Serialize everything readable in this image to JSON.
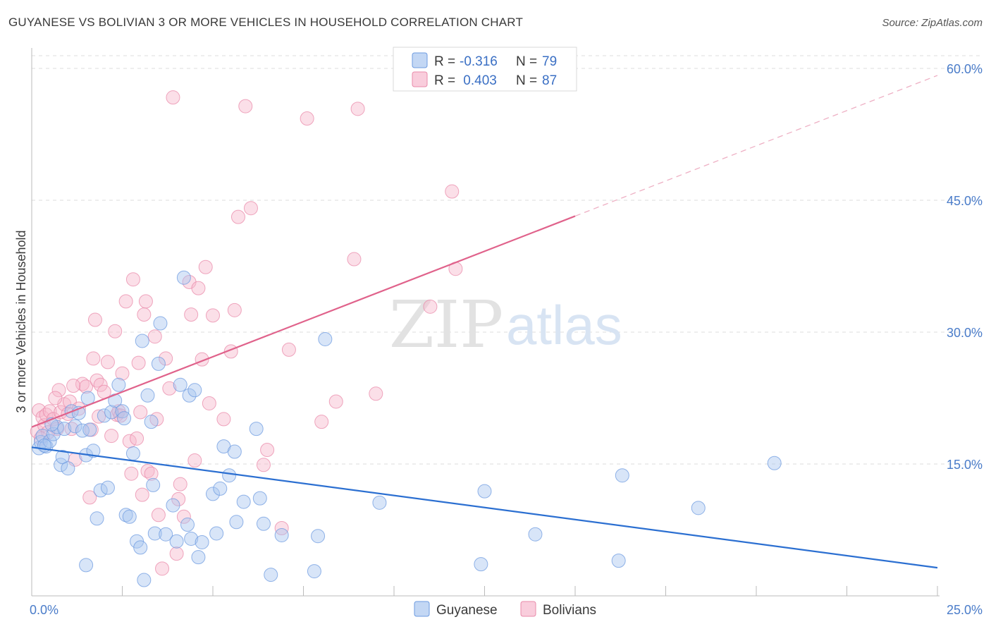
{
  "header": {
    "title": "GUYANESE VS BOLIVIAN 3 OR MORE VEHICLES IN HOUSEHOLD CORRELATION CHART",
    "source": "Source: ZipAtlas.com"
  },
  "watermark": {
    "zip": "ZIP",
    "atlas": "atlas"
  },
  "legend_top": {
    "rows": [
      {
        "r_label": "R =",
        "r_value": "-0.316",
        "n_label": "N =",
        "n_value": "79",
        "color": "#a9c6f0"
      },
      {
        "r_label": "R =",
        "r_value": " 0.403",
        "n_label": "N =",
        "n_value": "87",
        "color": "#f6b8cd"
      }
    ]
  },
  "legend_bottom": {
    "items": [
      "Guyanese",
      "Bolivians"
    ]
  },
  "colors": {
    "guyanese_fill": "#a9c6f0",
    "guyanese_stroke": "#6d9be0",
    "guyanese_line": "#2b6fd1",
    "bolivians_fill": "#f6b8cd",
    "bolivians_stroke": "#e98aaa",
    "bolivians_line": "#e0628b",
    "grid": "#dddddd",
    "tick_text": "#4a7cc9"
  },
  "chart_data": {
    "type": "scatter",
    "title": "GUYANESE VS BOLIVIAN 3 OR MORE VEHICLES IN HOUSEHOLD CORRELATION CHART",
    "xlabel": "",
    "ylabel": "3 or more Vehicles in Household",
    "xlim": [
      0,
      25
    ],
    "ylim": [
      0,
      60
    ],
    "x_ticks": [
      "0.0%",
      "25.0%"
    ],
    "y_ticks": [
      "15.0%",
      "30.0%",
      "45.0%",
      "60.0%"
    ],
    "y_tick_values": [
      15,
      30,
      45,
      60
    ],
    "grid": true,
    "legend_position": "top-center",
    "series": [
      {
        "name": "Guyanese",
        "r": -0.316,
        "n": 79,
        "trend": {
          "x": [
            0,
            25
          ],
          "y": [
            16.9,
            3.2
          ]
        },
        "points": [
          [
            0.2,
            16.8
          ],
          [
            0.25,
            17.5
          ],
          [
            0.3,
            18.2
          ],
          [
            0.4,
            17.0
          ],
          [
            0.5,
            17.6
          ],
          [
            0.6,
            18.4
          ],
          [
            0.7,
            19.2
          ],
          [
            0.8,
            14.9
          ],
          [
            0.85,
            15.8
          ],
          [
            0.9,
            19.0
          ],
          [
            1.0,
            14.5
          ],
          [
            1.1,
            21.0
          ],
          [
            1.2,
            19.3
          ],
          [
            1.3,
            20.8
          ],
          [
            1.4,
            18.8
          ],
          [
            1.5,
            16.0
          ],
          [
            1.55,
            22.5
          ],
          [
            1.6,
            18.9
          ],
          [
            1.7,
            16.5
          ],
          [
            1.8,
            8.8
          ],
          [
            1.9,
            12.0
          ],
          [
            2.0,
            20.5
          ],
          [
            2.1,
            12.3
          ],
          [
            2.2,
            20.9
          ],
          [
            2.3,
            22.2
          ],
          [
            2.4,
            24.0
          ],
          [
            2.5,
            21.0
          ],
          [
            2.55,
            20.2
          ],
          [
            2.6,
            9.2
          ],
          [
            2.7,
            9.0
          ],
          [
            2.8,
            16.2
          ],
          [
            2.9,
            6.2
          ],
          [
            3.0,
            5.5
          ],
          [
            3.05,
            29.0
          ],
          [
            3.1,
            1.8
          ],
          [
            3.2,
            22.8
          ],
          [
            3.3,
            19.8
          ],
          [
            3.35,
            12.6
          ],
          [
            3.4,
            7.1
          ],
          [
            3.5,
            26.4
          ],
          [
            3.55,
            31.0
          ],
          [
            3.7,
            7.0
          ],
          [
            3.9,
            10.3
          ],
          [
            4.0,
            6.2
          ],
          [
            4.1,
            24.0
          ],
          [
            4.2,
            36.2
          ],
          [
            4.3,
            8.1
          ],
          [
            4.35,
            22.8
          ],
          [
            4.4,
            6.5
          ],
          [
            4.5,
            23.4
          ],
          [
            4.6,
            4.4
          ],
          [
            4.7,
            6.1
          ],
          [
            5.0,
            11.6
          ],
          [
            5.1,
            7.1
          ],
          [
            5.2,
            12.2
          ],
          [
            5.3,
            17.0
          ],
          [
            5.45,
            13.7
          ],
          [
            5.6,
            16.4
          ],
          [
            5.65,
            8.4
          ],
          [
            5.85,
            10.7
          ],
          [
            6.2,
            19.0
          ],
          [
            6.3,
            11.1
          ],
          [
            6.4,
            8.2
          ],
          [
            6.6,
            2.4
          ],
          [
            6.9,
            6.9
          ],
          [
            7.8,
            2.8
          ],
          [
            7.9,
            6.8
          ],
          [
            8.1,
            29.2
          ],
          [
            9.6,
            10.6
          ],
          [
            12.4,
            3.6
          ],
          [
            12.5,
            11.9
          ],
          [
            13.9,
            7.0
          ],
          [
            16.2,
            4.0
          ],
          [
            16.3,
            13.7
          ],
          [
            18.4,
            10.0
          ],
          [
            20.5,
            15.1
          ],
          [
            1.5,
            3.5
          ],
          [
            0.35,
            17.1
          ],
          [
            0.55,
            19.5
          ]
        ]
      },
      {
        "name": "Bolivians",
        "r": 0.403,
        "n": 87,
        "trend": {
          "x": [
            0,
            15
          ],
          "y": [
            19.2,
            43.2
          ]
        },
        "trend_dashed": {
          "x": [
            15,
            25
          ],
          "y": [
            43.2,
            59.2
          ]
        },
        "points": [
          [
            0.15,
            18.7
          ],
          [
            0.2,
            21.1
          ],
          [
            0.3,
            20.3
          ],
          [
            0.35,
            19.4
          ],
          [
            0.4,
            20.6
          ],
          [
            0.5,
            21.0
          ],
          [
            0.6,
            20.1
          ],
          [
            0.7,
            19.0
          ],
          [
            0.75,
            23.4
          ],
          [
            0.8,
            20.9
          ],
          [
            0.9,
            21.8
          ],
          [
            1.0,
            20.7
          ],
          [
            1.05,
            22.1
          ],
          [
            1.1,
            19.0
          ],
          [
            1.2,
            15.5
          ],
          [
            1.3,
            21.3
          ],
          [
            1.4,
            24.1
          ],
          [
            1.5,
            23.8
          ],
          [
            1.6,
            11.2
          ],
          [
            1.65,
            18.9
          ],
          [
            1.7,
            27.0
          ],
          [
            1.75,
            31.4
          ],
          [
            1.8,
            24.5
          ],
          [
            1.9,
            24.0
          ],
          [
            2.0,
            23.2
          ],
          [
            2.1,
            26.6
          ],
          [
            2.2,
            18.2
          ],
          [
            2.3,
            30.1
          ],
          [
            2.35,
            20.6
          ],
          [
            2.4,
            21.0
          ],
          [
            2.5,
            25.3
          ],
          [
            2.6,
            33.5
          ],
          [
            2.7,
            17.6
          ],
          [
            2.8,
            36.0
          ],
          [
            2.9,
            17.9
          ],
          [
            2.95,
            26.5
          ],
          [
            3.05,
            11.5
          ],
          [
            3.1,
            32.0
          ],
          [
            3.15,
            33.5
          ],
          [
            3.2,
            14.2
          ],
          [
            3.3,
            13.9
          ],
          [
            3.4,
            29.5
          ],
          [
            3.45,
            20.1
          ],
          [
            3.5,
            9.2
          ],
          [
            3.6,
            3.1
          ],
          [
            3.7,
            27.0
          ],
          [
            3.8,
            23.6
          ],
          [
            3.9,
            56.7
          ],
          [
            4.0,
            4.8
          ],
          [
            4.1,
            12.7
          ],
          [
            4.2,
            9.0
          ],
          [
            4.35,
            35.7
          ],
          [
            4.4,
            32.0
          ],
          [
            4.5,
            15.4
          ],
          [
            4.6,
            35.0
          ],
          [
            4.7,
            26.9
          ],
          [
            4.8,
            37.4
          ],
          [
            4.9,
            21.9
          ],
          [
            5.0,
            31.9
          ],
          [
            5.3,
            20.1
          ],
          [
            5.5,
            27.8
          ],
          [
            5.6,
            32.5
          ],
          [
            5.7,
            43.1
          ],
          [
            5.9,
            55.7
          ],
          [
            6.05,
            44.1
          ],
          [
            6.4,
            14.9
          ],
          [
            6.5,
            16.6
          ],
          [
            6.9,
            7.7
          ],
          [
            7.1,
            28.0
          ],
          [
            7.6,
            54.3
          ],
          [
            8.0,
            19.8
          ],
          [
            8.4,
            22.1
          ],
          [
            8.9,
            38.3
          ],
          [
            9.0,
            55.4
          ],
          [
            9.5,
            23.0
          ],
          [
            11.0,
            32.9
          ],
          [
            11.6,
            46.0
          ],
          [
            11.7,
            37.2
          ],
          [
            3.0,
            20.9
          ],
          [
            2.45,
            20.5
          ],
          [
            1.85,
            20.4
          ],
          [
            0.65,
            22.5
          ],
          [
            1.15,
            23.9
          ],
          [
            2.75,
            13.9
          ],
          [
            4.05,
            11.0
          ],
          [
            0.45,
            18.6
          ],
          [
            0.25,
            17.9
          ]
        ]
      }
    ]
  }
}
